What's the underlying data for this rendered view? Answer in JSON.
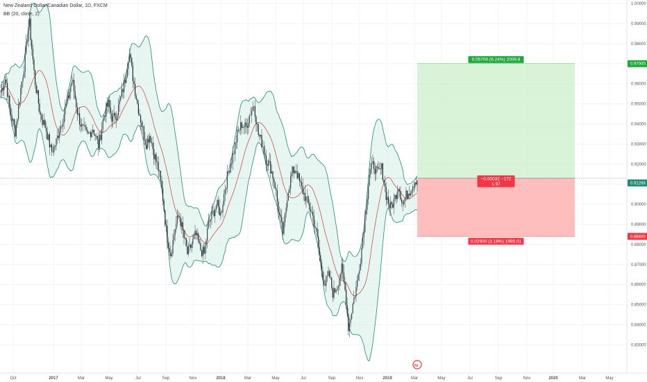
{
  "header": {
    "title": "New Zealand Dollar/Canadian Dollar, 1D, FXCM",
    "indicator": "BB (20, close, 2)"
  },
  "chart_data": {
    "type": "candlestick",
    "symbol": "NZDCAD",
    "ylim": [
      0.826,
      1.0
    ],
    "y_ticks": [
      "1.00000",
      "0.99000",
      "0.98000",
      "0.97000",
      "0.96000",
      "0.95000",
      "0.94000",
      "0.93000",
      "0.92000",
      "0.91000",
      "0.90000",
      "0.89000",
      "0.88000",
      "0.87000",
      "0.86000",
      "0.85000",
      "0.84000",
      "0.83000"
    ],
    "x_ticks": [
      "Oct",
      "2017",
      "Mar",
      "May",
      "Jul",
      "Sep",
      "Nov",
      "2018",
      "Mar",
      "May",
      "Jul",
      "Sep",
      "Nov",
      "2019",
      "Mar",
      "May",
      "Jul",
      "Sep",
      "Nov",
      "2020",
      "Mar",
      "May"
    ],
    "price_path": [
      [
        0,
        0.955
      ],
      [
        8,
        0.963
      ],
      [
        14,
        0.947
      ],
      [
        22,
        0.936
      ],
      [
        30,
        0.958
      ],
      [
        36,
        0.972
      ],
      [
        42,
        0.992
      ],
      [
        50,
        0.962
      ],
      [
        58,
        0.945
      ],
      [
        66,
        0.938
      ],
      [
        74,
        0.926
      ],
      [
        80,
        0.93
      ],
      [
        88,
        0.94
      ],
      [
        96,
        0.95
      ],
      [
        104,
        0.962
      ],
      [
        112,
        0.945
      ],
      [
        118,
        0.938
      ],
      [
        126,
        0.934
      ],
      [
        134,
        0.938
      ],
      [
        142,
        0.929
      ],
      [
        150,
        0.945
      ],
      [
        156,
        0.95
      ],
      [
        162,
        0.942
      ],
      [
        168,
        0.945
      ],
      [
        174,
        0.953
      ],
      [
        180,
        0.962
      ],
      [
        186,
        0.976
      ],
      [
        192,
        0.962
      ],
      [
        198,
        0.95
      ],
      [
        204,
        0.94
      ],
      [
        210,
        0.93
      ],
      [
        216,
        0.935
      ],
      [
        222,
        0.925
      ],
      [
        228,
        0.918
      ],
      [
        234,
        0.905
      ],
      [
        240,
        0.885
      ],
      [
        246,
        0.875
      ],
      [
        252,
        0.888
      ],
      [
        258,
        0.895
      ],
      [
        264,
        0.885
      ],
      [
        270,
        0.875
      ],
      [
        276,
        0.88
      ],
      [
        282,
        0.885
      ],
      [
        288,
        0.878
      ],
      [
        294,
        0.875
      ],
      [
        300,
        0.89
      ],
      [
        306,
        0.895
      ],
      [
        312,
        0.9
      ],
      [
        318,
        0.895
      ],
      [
        324,
        0.908
      ],
      [
        330,
        0.918
      ],
      [
        336,
        0.925
      ],
      [
        342,
        0.935
      ],
      [
        348,
        0.94
      ],
      [
        354,
        0.938
      ],
      [
        360,
        0.945
      ],
      [
        366,
        0.95
      ],
      [
        372,
        0.935
      ],
      [
        378,
        0.93
      ],
      [
        384,
        0.922
      ],
      [
        390,
        0.918
      ],
      [
        396,
        0.91
      ],
      [
        402,
        0.895
      ],
      [
        408,
        0.885
      ],
      [
        414,
        0.905
      ],
      [
        420,
        0.915
      ],
      [
        426,
        0.918
      ],
      [
        432,
        0.91
      ],
      [
        438,
        0.905
      ],
      [
        444,
        0.9
      ],
      [
        450,
        0.895
      ],
      [
        456,
        0.885
      ],
      [
        462,
        0.87
      ],
      [
        468,
        0.86
      ],
      [
        474,
        0.865
      ],
      [
        480,
        0.855
      ],
      [
        486,
        0.86
      ],
      [
        492,
        0.868
      ],
      [
        498,
        0.855
      ],
      [
        502,
        0.838
      ],
      [
        508,
        0.85
      ],
      [
        514,
        0.86
      ],
      [
        520,
        0.875
      ],
      [
        526,
        0.895
      ],
      [
        532,
        0.915
      ],
      [
        538,
        0.92
      ],
      [
        544,
        0.915
      ],
      [
        550,
        0.918
      ],
      [
        556,
        0.905
      ],
      [
        562,
        0.898
      ],
      [
        568,
        0.902
      ],
      [
        574,
        0.91
      ],
      [
        580,
        0.9
      ],
      [
        586,
        0.905
      ],
      [
        592,
        0.908
      ],
      [
        598,
        0.912
      ],
      [
        602,
        0.9126
      ]
    ],
    "last_price": "0.91268",
    "current_level": "0.91300",
    "position": {
      "type": "long",
      "entry": 0.913,
      "target": 0.97,
      "stop": 0.884,
      "target_label": "0.97000",
      "stop_label": "0.88400",
      "profit_text": "0.05700 (6.24%) 2009.8",
      "center_text": "−0.00032 −172",
      "ratio_text": "1.97",
      "loss_text": "0.02900 (3.18%) 1995.01"
    },
    "colors": {
      "up": "#26a69a",
      "down": "#ef5350",
      "wick": "#3a3a3a",
      "candle_body": "#37474f",
      "band": "#1f8a70",
      "band_fill": "#d8f0ea",
      "basis": "#c23b3b",
      "profit_fill": "#ccefcc",
      "loss_fill": "#ffb3b3",
      "profit_tag": "#1ea83c",
      "loss_tag": "#f23645"
    }
  }
}
